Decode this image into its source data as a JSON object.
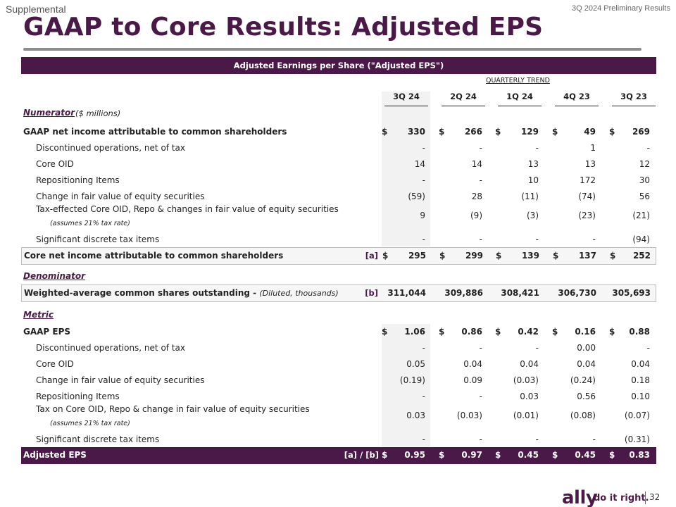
{
  "header": {
    "section_label": "Supplemental",
    "report_label": "3Q 2024 Preliminary Results",
    "title": "GAAP to Core Results: Adjusted EPS"
  },
  "banner": "Adjusted Earnings per Share (\"Adjusted EPS\")",
  "trend_label": "QUARTERLY TREND",
  "columns": [
    "3Q 24",
    "2Q 24",
    "1Q 24",
    "4Q 23",
    "3Q 23"
  ],
  "numerator": {
    "heading": "Numerator",
    "unit": "($ millions)",
    "rows": [
      {
        "label": "GAAP net income attributable to common shareholders",
        "values": [
          "330",
          "266",
          "129",
          "49",
          "269"
        ],
        "dollar": "$"
      },
      {
        "label": "Discontinued operations, net of tax",
        "values": [
          "-",
          "-",
          "-",
          "1",
          "-"
        ]
      },
      {
        "label": "Core OID",
        "values": [
          "14",
          "14",
          "13",
          "13",
          "12"
        ]
      },
      {
        "label": "Repositioning Items",
        "values": [
          "-",
          "-",
          "10",
          "172",
          "30"
        ]
      },
      {
        "label": "Change in fair value of equity securities",
        "values": [
          "(59)",
          "28",
          "(11)",
          "(74)",
          "56"
        ]
      },
      {
        "label": "Tax-effected Core OID, Repo & changes in fair value of equity securities",
        "note": "(assumes 21% tax rate)",
        "values": [
          "9",
          "(9)",
          "(3)",
          "(23)",
          "(21)"
        ]
      },
      {
        "label": "Significant discrete tax items",
        "values": [
          "-",
          "-",
          "-",
          "-",
          "(94)"
        ]
      }
    ],
    "total": {
      "label": "Core net income attributable to common shareholders",
      "tag": "[a]",
      "dollar": "$",
      "values": [
        "295",
        "299",
        "139",
        "137",
        "252"
      ]
    }
  },
  "denominator": {
    "heading": "Denominator",
    "row": {
      "label": "Weighted-average common shares outstanding - ",
      "label_note": "(Diluted, thousands)",
      "tag": "[b]",
      "values": [
        "311,044",
        "309,886",
        "308,421",
        "306,730",
        "305,693"
      ]
    }
  },
  "metric": {
    "heading": "Metric",
    "rows": [
      {
        "label": "GAAP EPS",
        "values": [
          "1.06",
          "0.86",
          "0.42",
          "0.16",
          "0.88"
        ],
        "dollar": "$"
      },
      {
        "label": "Discontinued operations, net of tax",
        "values": [
          "-",
          "-",
          "-",
          "0.00",
          "-"
        ]
      },
      {
        "label": "Core OID",
        "values": [
          "0.05",
          "0.04",
          "0.04",
          "0.04",
          "0.04"
        ]
      },
      {
        "label": "Change in fair value of equity securities",
        "values": [
          "(0.19)",
          "0.09",
          "(0.03)",
          "(0.24)",
          "0.18"
        ]
      },
      {
        "label": "Repositioning Items",
        "values": [
          "-",
          "-",
          "0.03",
          "0.56",
          "0.10"
        ]
      },
      {
        "label": "Tax on Core OID, Repo & change in fair value of equity securities",
        "note": "(assumes 21% tax rate)",
        "values": [
          "0.03",
          "(0.03)",
          "(0.01)",
          "(0.08)",
          "(0.07)"
        ]
      },
      {
        "label": "Significant discrete tax items",
        "values": [
          "-",
          "-",
          "-",
          "-",
          "(0.31)"
        ]
      }
    ],
    "total": {
      "label": "Adjusted EPS",
      "tag": "[a] / [b]",
      "dollar": "$",
      "values": [
        "0.95",
        "0.97",
        "0.45",
        "0.45",
        "0.83"
      ]
    }
  },
  "footer": {
    "brand": "ally",
    "tagline": "do it right.",
    "page": "32"
  }
}
